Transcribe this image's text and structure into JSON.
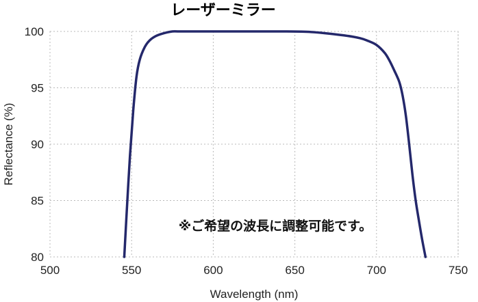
{
  "chart_data": {
    "type": "line",
    "title": "レーザーミラー",
    "xlabel": "Wavelength (nm)",
    "ylabel": "Reflectance (%)",
    "xlim": [
      500,
      750
    ],
    "ylim": [
      80,
      100
    ],
    "x_ticks": [
      500,
      550,
      600,
      650,
      700,
      750
    ],
    "y_ticks": [
      80,
      85,
      90,
      95,
      100
    ],
    "grid": true,
    "annotation": "※ご希望の波長に調整可能です。",
    "series": [
      {
        "color": "#24286b",
        "x": [
          545.5,
          547,
          549,
          551,
          553,
          555,
          558,
          561,
          565,
          570,
          575,
          580,
          600,
          620,
          640,
          660,
          680,
          690,
          695,
          700,
          705,
          708,
          711,
          714,
          716,
          718,
          720,
          722,
          724,
          726,
          728,
          730
        ],
        "y": [
          80,
          84,
          89,
          93,
          96,
          97.5,
          98.6,
          99.2,
          99.6,
          99.85,
          100,
          100,
          100,
          100,
          100,
          99.95,
          99.65,
          99.4,
          99.15,
          98.8,
          98.1,
          97.4,
          96.5,
          95.5,
          94.3,
          92.5,
          90,
          87.3,
          85,
          83.2,
          81.5,
          80
        ]
      }
    ]
  }
}
